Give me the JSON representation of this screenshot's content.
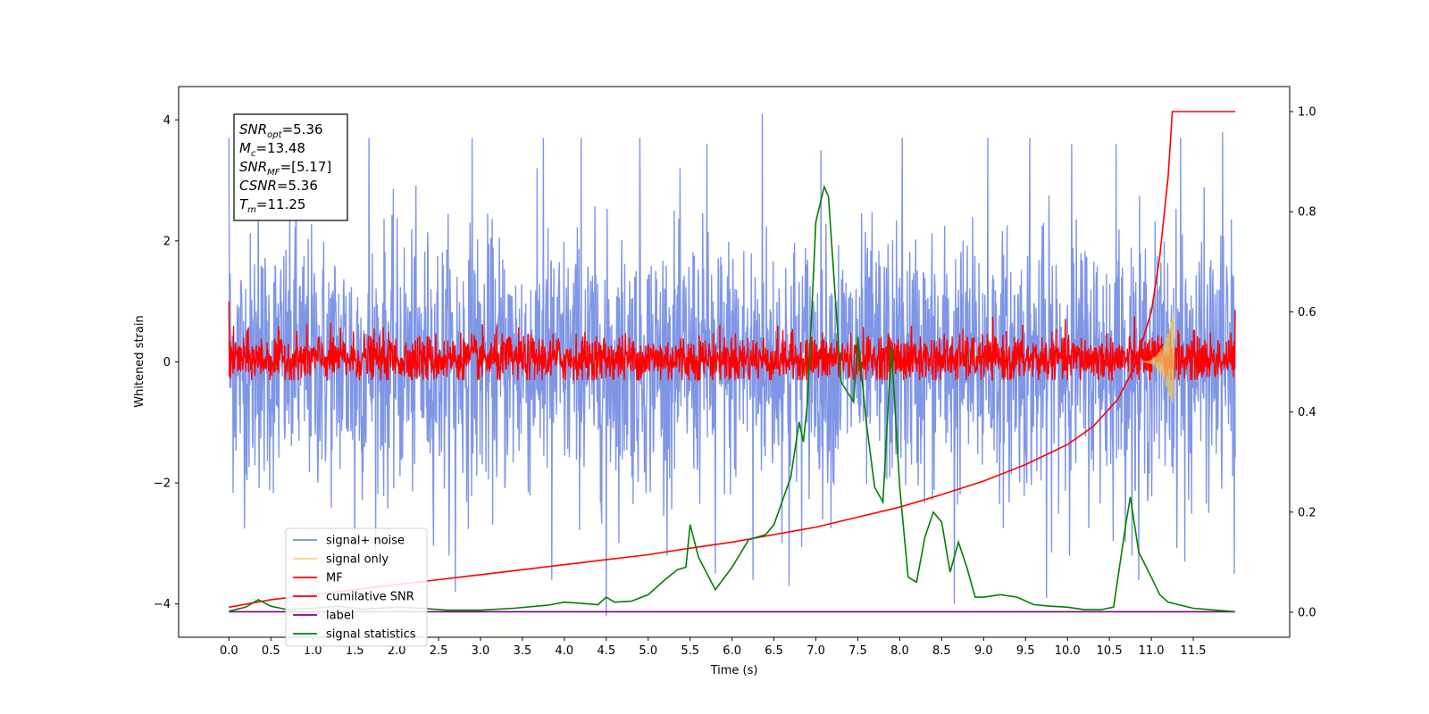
{
  "chart_data": {
    "type": "line",
    "xlabel": "Time (s)",
    "ylabel_left": "Whitened strain",
    "ylabel_right": "",
    "xlim": [
      -0.6,
      12.65
    ],
    "ylim_left": [
      -4.55,
      4.55
    ],
    "ylim_right": [
      -0.05,
      1.05
    ],
    "x_ticks": [
      "0.0",
      "0.5",
      "1.0",
      "1.5",
      "2.0",
      "2.5",
      "3.0",
      "3.5",
      "4.0",
      "4.5",
      "5.0",
      "5.5",
      "6.0",
      "6.5",
      "7.0",
      "7.5",
      "8.0",
      "8.5",
      "9.0",
      "9.5",
      "10.0",
      "10.5",
      "11.0",
      "11.5"
    ],
    "y_ticks_left": [
      "−4",
      "−2",
      "0",
      "2",
      "4"
    ],
    "y_ticks_right": [
      "0.0",
      "0.2",
      "0.4",
      "0.6",
      "0.8",
      "1.0"
    ],
    "grid": false,
    "legend_position": "lower-left",
    "annotation": {
      "lines": [
        {
          "sym": "SNR",
          "sub": "opt",
          "val": "=5.36"
        },
        {
          "sym": "M",
          "sub": "c",
          "val": "=13.48"
        },
        {
          "sym": "SNR",
          "sub": "MF",
          "val": "=[5.17]"
        },
        {
          "sym": "CSNR",
          "sub": "",
          "val": "=5.36"
        },
        {
          "sym": "T",
          "sub": "m",
          "val": "=11.25"
        }
      ]
    },
    "series": [
      {
        "name": "signal+ noise",
        "color": "#7890e6",
        "axis": "left",
        "kind": "noise",
        "x_range": [
          0,
          12.0
        ],
        "amplitude_sigma": 1.05,
        "spikes": [
          [
            0.0,
            3.7
          ],
          [
            0.35,
            3.5
          ],
          [
            0.8,
            3.6
          ],
          [
            1.67,
            3.7
          ],
          [
            2.9,
            3.7
          ],
          [
            3.75,
            3.7
          ],
          [
            4.2,
            3.7
          ],
          [
            4.9,
            3.7
          ],
          [
            5.7,
            3.6
          ],
          [
            6.36,
            4.1
          ],
          [
            7.06,
            3.5
          ],
          [
            8.03,
            3.7
          ],
          [
            9.05,
            3.7
          ],
          [
            9.55,
            3.7
          ],
          [
            10.05,
            3.6
          ],
          [
            10.58,
            3.6
          ],
          [
            11.35,
            3.7
          ],
          [
            11.85,
            3.8
          ],
          [
            1.5,
            -3.4
          ],
          [
            2.7,
            -3.8
          ],
          [
            3.85,
            -3.6
          ],
          [
            4.5,
            -4.2
          ],
          [
            5.8,
            -3.5
          ],
          [
            6.25,
            -3.6
          ],
          [
            6.68,
            -3.7
          ],
          [
            8.65,
            -4.0
          ],
          [
            9.75,
            -3.9
          ],
          [
            10.85,
            -3.6
          ],
          [
            11.4,
            -3.3
          ],
          [
            11.99,
            -3.5
          ]
        ]
      },
      {
        "name": "signal only",
        "color": "#f0c75e",
        "axis": "left",
        "kind": "chirp",
        "x_range": [
          10.9,
          11.27
        ],
        "peak": 0.85
      },
      {
        "name": "MF",
        "color": "#ff0000",
        "axis": "left",
        "kind": "mf_noise",
        "x_range": [
          0,
          12.0
        ],
        "amplitude_sigma": 0.2
      },
      {
        "name": "cumilative SNR",
        "color": "#ff0000",
        "axis": "right",
        "x": [
          0.0,
          0.5,
          1.0,
          1.5,
          2.0,
          2.5,
          3.0,
          3.5,
          4.0,
          4.5,
          5.0,
          5.5,
          6.0,
          6.5,
          7.0,
          7.5,
          8.0,
          8.5,
          9.0,
          9.5,
          10.0,
          10.3,
          10.6,
          10.8,
          11.0,
          11.1,
          11.2,
          11.25,
          11.5,
          12.0
        ],
        "y": [
          0.01,
          0.025,
          0.035,
          0.045,
          0.055,
          0.065,
          0.075,
          0.085,
          0.095,
          0.105,
          0.115,
          0.128,
          0.14,
          0.155,
          0.17,
          0.19,
          0.21,
          0.235,
          0.262,
          0.295,
          0.335,
          0.37,
          0.425,
          0.49,
          0.6,
          0.71,
          0.87,
          1.0,
          1.0,
          1.0
        ]
      },
      {
        "name": "label",
        "color": "#800080",
        "axis": "right",
        "x": [
          0.0,
          12.0
        ],
        "y": [
          0.001,
          0.001
        ]
      },
      {
        "name": "signal statistics",
        "color": "#008000",
        "axis": "right",
        "x": [
          0.0,
          0.2,
          0.35,
          0.5,
          0.7,
          1.0,
          1.3,
          1.6,
          2.0,
          2.3,
          2.6,
          3.0,
          3.4,
          3.8,
          4.0,
          4.2,
          4.4,
          4.5,
          4.6,
          4.8,
          5.0,
          5.2,
          5.35,
          5.45,
          5.5,
          5.6,
          5.8,
          6.0,
          6.2,
          6.4,
          6.5,
          6.7,
          6.8,
          6.85,
          6.9,
          7.0,
          7.1,
          7.15,
          7.3,
          7.45,
          7.5,
          7.6,
          7.7,
          7.8,
          7.9,
          8.0,
          8.1,
          8.2,
          8.3,
          8.4,
          8.5,
          8.6,
          8.7,
          8.8,
          8.9,
          9.0,
          9.2,
          9.4,
          9.6,
          9.8,
          10.0,
          10.2,
          10.4,
          10.55,
          10.7,
          10.75,
          10.85,
          11.0,
          11.1,
          11.2,
          11.5,
          12.0
        ],
        "y": [
          0.002,
          0.01,
          0.025,
          0.012,
          0.005,
          0.008,
          0.012,
          0.006,
          0.01,
          0.008,
          0.004,
          0.004,
          0.008,
          0.014,
          0.02,
          0.018,
          0.015,
          0.03,
          0.02,
          0.022,
          0.035,
          0.065,
          0.085,
          0.09,
          0.175,
          0.11,
          0.045,
          0.09,
          0.145,
          0.155,
          0.175,
          0.27,
          0.38,
          0.34,
          0.42,
          0.78,
          0.85,
          0.83,
          0.46,
          0.42,
          0.55,
          0.38,
          0.25,
          0.22,
          0.53,
          0.25,
          0.07,
          0.06,
          0.15,
          0.2,
          0.18,
          0.08,
          0.14,
          0.09,
          0.03,
          0.03,
          0.035,
          0.03,
          0.015,
          0.012,
          0.01,
          0.005,
          0.005,
          0.01,
          0.18,
          0.23,
          0.12,
          0.07,
          0.035,
          0.02,
          0.008,
          0.001
        ]
      }
    ]
  }
}
